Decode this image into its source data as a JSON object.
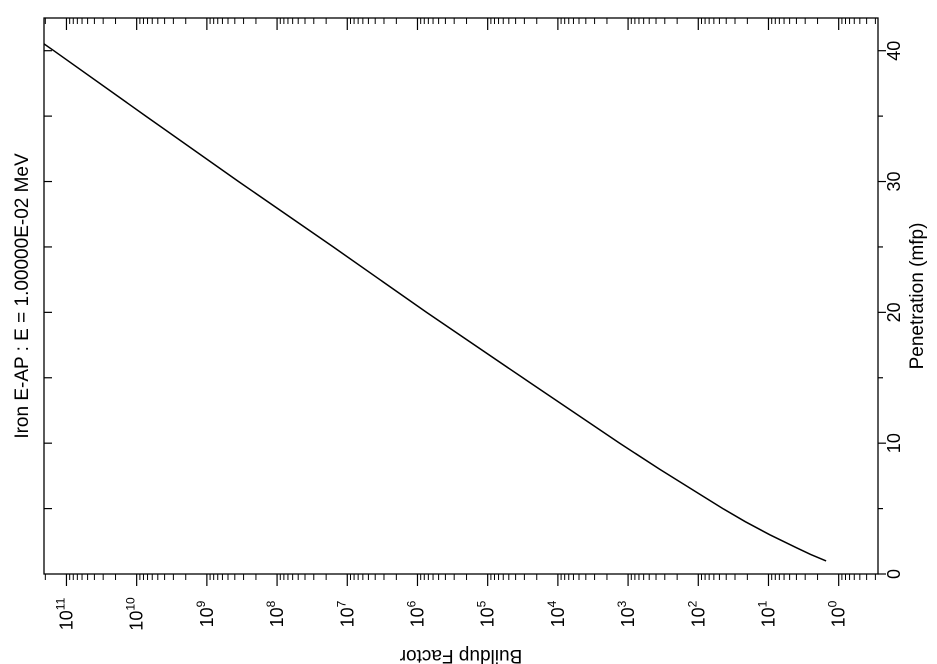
{
  "chart_data": {
    "type": "line",
    "orientation": "rotated-90-clockwise",
    "title": "Iron E-AP : E = 1.00000E-02 MeV",
    "xlabel": "Penetration (mfp)",
    "ylabel": "Buildup Factor",
    "xlim": [
      0,
      42.5
    ],
    "ylim_log10": [
      -0.56,
      11.32
    ],
    "y_scale": "log",
    "grid": false,
    "x_ticks": [
      0,
      10,
      20,
      30,
      40
    ],
    "x_tick_labels": [
      "0",
      "10",
      "20",
      "30",
      "40"
    ],
    "y_tick_exponents": [
      0,
      1,
      2,
      3,
      4,
      5,
      6,
      7,
      8,
      9,
      10,
      11
    ],
    "y_tick_label_base": "10",
    "y_tick_label_exponents": [
      "0",
      "1",
      "2",
      "3",
      "4",
      "5",
      "6",
      "7",
      "8",
      "9",
      "10",
      "11"
    ],
    "series": [
      {
        "x": [
          1,
          1.5,
          2,
          3,
          4,
          5,
          6,
          8,
          10,
          15,
          20,
          25,
          30,
          35,
          40,
          42.5
        ],
        "y_log10": [
          0.18,
          0.4,
          0.6,
          0.98,
          1.33,
          1.65,
          1.95,
          2.55,
          3.12,
          4.5,
          5.87,
          7.2,
          8.55,
          9.87,
          11.18,
          11.85
        ]
      }
    ]
  }
}
